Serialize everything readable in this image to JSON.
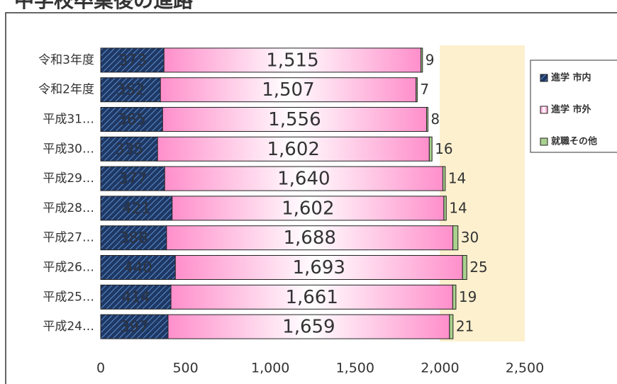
{
  "chart_data": {
    "type": "stacked-bar-horizontal",
    "title": "中学校卒業後の進路",
    "categories": [
      "令和3年度",
      "令和2年度",
      "平成31…",
      "平成30…",
      "平成29…",
      "平成28…",
      "平成27…",
      "平成26…",
      "平成25…",
      "平成24…"
    ],
    "series": [
      {
        "name": "進学 市内",
        "color": "#1f3864",
        "values": [
          373,
          352,
          365,
          335,
          377,
          421,
          388,
          440,
          414,
          397
        ]
      },
      {
        "name": "進学 市外",
        "color": "#ff8fcb",
        "values": [
          1515,
          1507,
          1556,
          1602,
          1640,
          1602,
          1688,
          1693,
          1661,
          1659
        ],
        "value_labels": [
          "1,515",
          "1,507",
          "1,556",
          "1,602",
          "1,640",
          "1,602",
          "1,688",
          "1,693",
          "1,661",
          "1,659"
        ]
      },
      {
        "name": "就職その他",
        "color": "#a9d18e",
        "values": [
          9,
          7,
          8,
          16,
          14,
          14,
          30,
          25,
          19,
          21
        ]
      }
    ],
    "xlim": [
      0,
      2500
    ],
    "xticks": [
      0,
      {
        "value": 500,
        "label": "500"
      },
      {
        "value": 1000,
        "label": "1,000"
      },
      {
        "value": 1500,
        "label": "1,500"
      },
      {
        "value": 2000,
        "label": "2,000"
      },
      {
        "value": 2500,
        "label": "2,500"
      }
    ],
    "legend": "right"
  }
}
